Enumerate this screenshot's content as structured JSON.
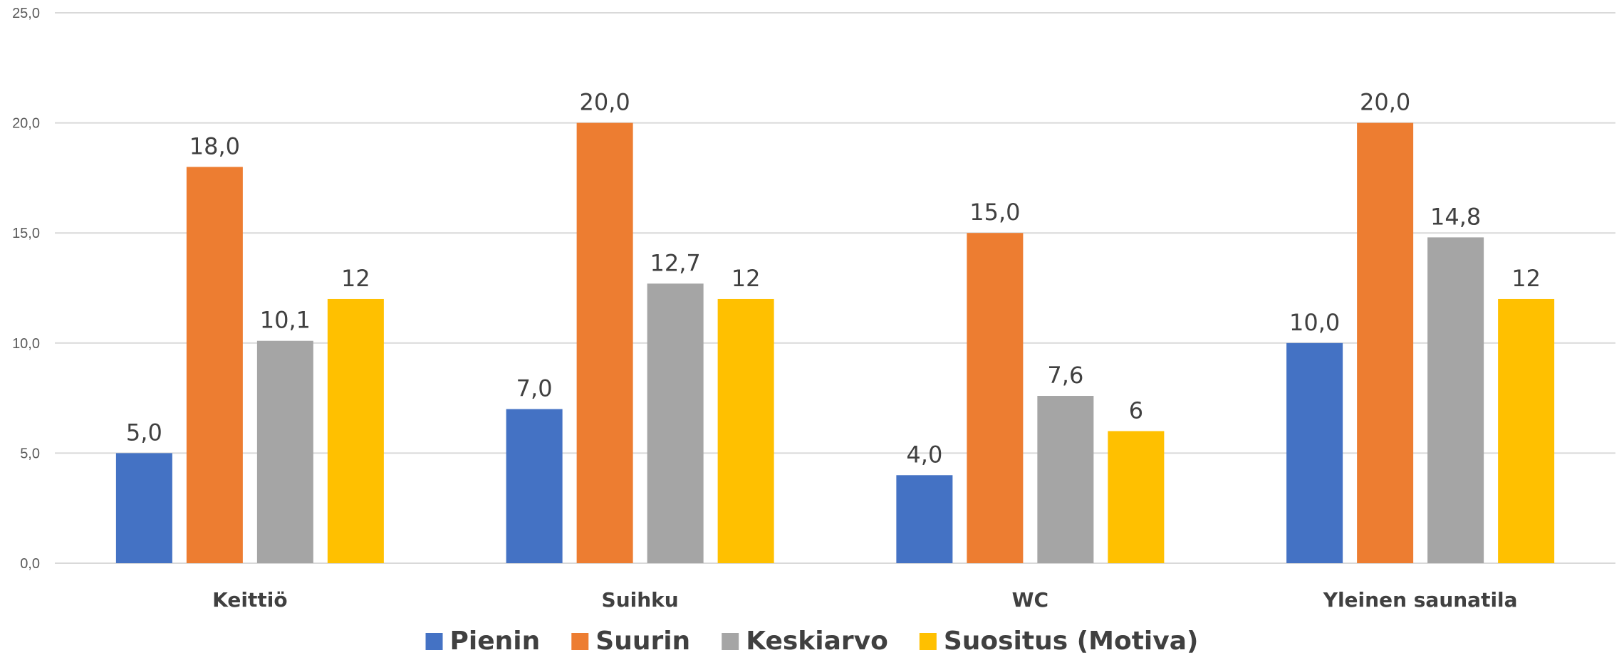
{
  "chart_data": {
    "type": "bar",
    "title": "",
    "xlabel": "",
    "ylabel": "",
    "ylim": [
      0,
      25
    ],
    "yticks": [
      "0,0",
      "5,0",
      "10,0",
      "15,0",
      "20,0",
      "25,0"
    ],
    "grid": true,
    "legend_position": "bottom",
    "categories": [
      "Keittiö",
      "Suihku",
      "WC",
      "Yleinen saunatila"
    ],
    "series": [
      {
        "name": "Pienin",
        "color": "#4472C4",
        "values": [
          5.0,
          7.0,
          4.0,
          10.0
        ],
        "labels": [
          "5,0",
          "7,0",
          "4,0",
          "10,0"
        ]
      },
      {
        "name": "Suurin",
        "color": "#ED7D31",
        "values": [
          18.0,
          20.0,
          15.0,
          20.0
        ],
        "labels": [
          "18,0",
          "20,0",
          "15,0",
          "20,0"
        ]
      },
      {
        "name": "Keskiarvo",
        "color": "#A5A5A5",
        "values": [
          10.1,
          12.7,
          7.6,
          14.8
        ],
        "labels": [
          "10,1",
          "12,7",
          "7,6",
          "14,8"
        ]
      },
      {
        "name": "Suositus (Motiva)",
        "color": "#FFC000",
        "values": [
          12,
          12,
          6,
          12
        ],
        "labels": [
          "12",
          "12",
          "6",
          "12"
        ]
      }
    ]
  }
}
